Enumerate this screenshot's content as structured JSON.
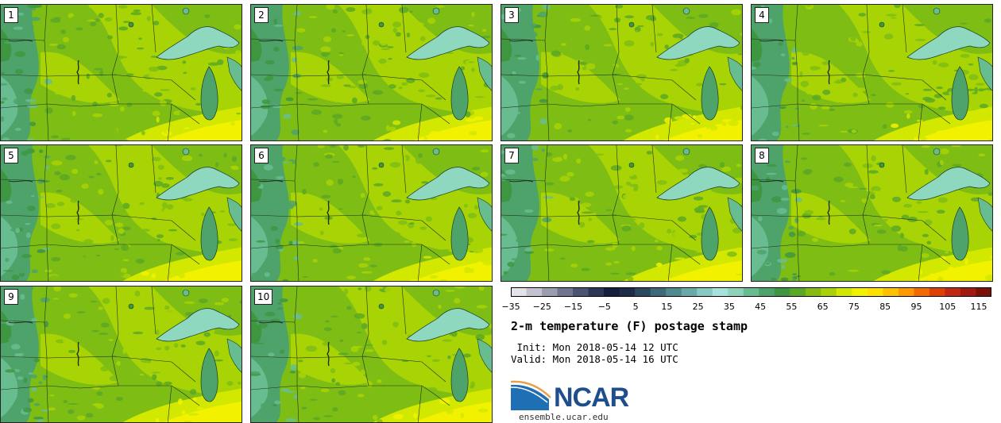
{
  "panels": [
    {
      "label": "1"
    },
    {
      "label": "2"
    },
    {
      "label": "3"
    },
    {
      "label": "4"
    },
    {
      "label": "5"
    },
    {
      "label": "6"
    },
    {
      "label": "7"
    },
    {
      "label": "8"
    },
    {
      "label": "9"
    },
    {
      "label": "10"
    }
  ],
  "colorbar": {
    "ticks": [
      "−35",
      "−25",
      "−15",
      "−5",
      "5",
      "15",
      "25",
      "35",
      "45",
      "55",
      "65",
      "75",
      "85",
      "95",
      "105",
      "115"
    ],
    "colors": [
      "#e3e3ea",
      "#c2c3cf",
      "#9b9db0",
      "#717690",
      "#4b5272",
      "#2c3656",
      "#141e3c",
      "#1e2c48",
      "#2b4a60",
      "#3d6a78",
      "#4f8a90",
      "#67aaa8",
      "#86c8c2",
      "#a6e2da",
      "#8cd4b8",
      "#68bd90",
      "#4ea36a",
      "#3f9640",
      "#5aa825",
      "#85bc14",
      "#a9d206",
      "#d2e800",
      "#f2f200",
      "#ffe000",
      "#ffc000",
      "#fd9a00",
      "#f26a00",
      "#dd4000",
      "#c02812",
      "#a01a12",
      "#7a1008"
    ]
  },
  "title": "2-m temperature (F) postage stamp",
  "init": " Init: Mon 2018-05-14 12 UTC",
  "valid": "Valid: Mon 2018-05-14 16 UTC",
  "logo": {
    "name": "NCAR",
    "site": "ensemble.ucar.edu"
  }
}
